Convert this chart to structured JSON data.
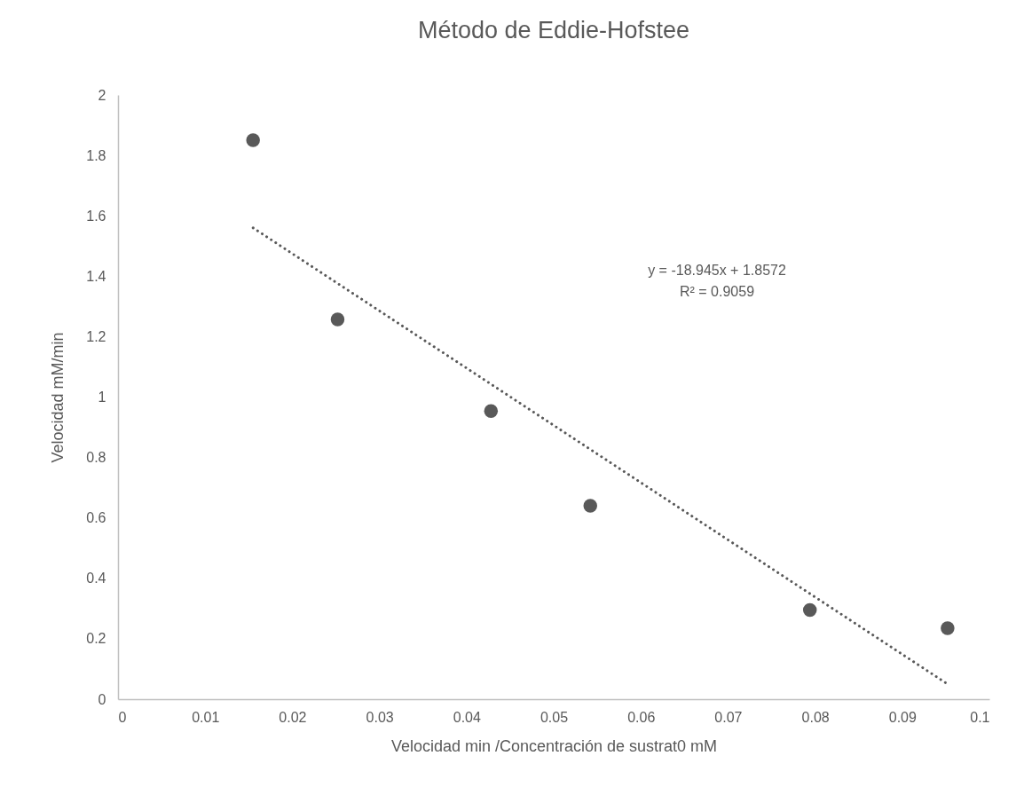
{
  "chart_data": {
    "type": "scatter",
    "title": "Método de Eddie-Hofstee",
    "xlabel": "Velocidad min /Concentración de sustrat0 mM",
    "ylabel": "Velocidad mM/min",
    "x": [
      0.0155,
      0.0252,
      0.0428,
      0.0542,
      0.0794,
      0.0952
    ],
    "series": [
      {
        "color": "#595959",
        "values": [
          1.85,
          1.257,
          0.954,
          0.64,
          0.295,
          0.235
        ]
      },
      {
        "type": "line",
        "color": "#595959",
        "line_style": "dotted",
        "marker": "none",
        "x": [
          0.0155,
          0.0952
        ],
        "values": [
          1.56,
          0.05
        ]
      }
    ],
    "annotations": [
      "y = -18.945x + 1.8572",
      "R² = 0.9059"
    ],
    "xlim": [
      0,
      0.1
    ],
    "xticks": [
      0,
      0.01,
      0.02,
      0.03,
      0.04,
      0.05,
      0.06,
      0.07,
      0.08,
      0.09,
      0.1
    ],
    "ylim": [
      0,
      2
    ],
    "yticks": [
      0,
      0.2,
      0.4,
      0.6,
      0.8,
      1,
      1.2,
      1.4,
      1.6,
      1.8,
      2
    ],
    "grid": false,
    "marker": "circle"
  }
}
